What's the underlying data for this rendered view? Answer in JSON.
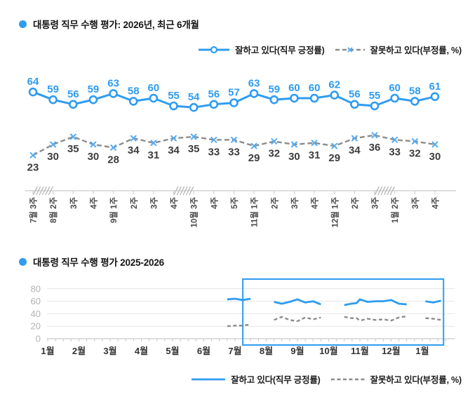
{
  "style": {
    "approve": "#2F9CF0",
    "disapprove": "#8C8C8C",
    "disapprove_marker": "#54ACF2",
    "disapprove_label": "#3D3D3D",
    "axis": "#C9C9C9",
    "grid": "#E4E4E4",
    "hatch": "#B5B5B5",
    "x_tick_label": "#4A4A4A",
    "y_tick_label": "#B3B3B3",
    "month_label": "#333333",
    "title": "#161616",
    "background": "#FFFFFF"
  },
  "chart_data": [
    {
      "type": "line",
      "title": "대통령 직무 수행 평가: 2026년, 최근 6개월",
      "categories": [
        "7월 3주",
        "8월 2주",
        "3주",
        "4주",
        "9월 1주",
        "2주",
        "3주",
        "4주",
        "10월 3주",
        "4주",
        "5주",
        "11월 1주",
        "2주",
        "3주",
        "4주",
        "12월 1주",
        "2주",
        "3주",
        "1월 2주",
        "3주",
        "4주"
      ],
      "series": [
        {
          "name": "잘하고 있다(직무 긍정률)",
          "role": "approval",
          "values": [
            64,
            59,
            56,
            59,
            63,
            58,
            60,
            55,
            54,
            56,
            57,
            63,
            59,
            60,
            60,
            62,
            56,
            55,
            60,
            58,
            61
          ]
        },
        {
          "name": "잘못하고 있다(부정률, %)",
          "role": "disapproval",
          "values": [
            23,
            30,
            35,
            30,
            28,
            34,
            31,
            34,
            35,
            33,
            33,
            29,
            32,
            30,
            31,
            29,
            34,
            36,
            33,
            32,
            30
          ]
        }
      ],
      "axis_breaks_after_index": [
        0,
        7,
        17
      ],
      "value_labels_shown": true,
      "legend_position": "top-right",
      "grid": false
    },
    {
      "type": "line",
      "title": "대통령 직무 수행 평가 2025-2026",
      "x_tick_labels": [
        "1월",
        "2월",
        "3월",
        "4월",
        "5월",
        "6월",
        "7월",
        "8월",
        "9월",
        "10월",
        "11월",
        "12월",
        "1월"
      ],
      "y_ticks": [
        0,
        20,
        40,
        60,
        80
      ],
      "ylim": [
        0,
        90
      ],
      "grid": "horizontal",
      "legend_position": "bottom-right",
      "highlight_box": {
        "x_from_month": 7.25,
        "x_to_month": 13.68
      },
      "series": [
        {
          "name": "잘하고 있다(직무 긍정률)",
          "role": "approval",
          "segments": [
            {
              "x": [
                6.75,
                7.0,
                7.25,
                7.5
              ],
              "values": [
                63,
                64,
                62,
                64
              ]
            },
            {
              "x": [
                8.25,
                8.5,
                8.75,
                9.0,
                9.25,
                9.5,
                9.75
              ],
              "values": [
                59,
                56,
                59,
                63,
                58,
                60,
                55
              ]
            },
            {
              "x": [
                10.5,
                10.72,
                10.89,
                11.0,
                11.25,
                11.5,
                11.75,
                12.0,
                12.25,
                12.5
              ],
              "values": [
                54,
                56,
                57,
                63,
                59,
                60,
                60,
                62,
                56,
                55
              ]
            },
            {
              "x": [
                13.1,
                13.35,
                13.6
              ],
              "values": [
                60,
                58,
                61
              ]
            }
          ]
        },
        {
          "name": "잘못하고 있다(부정률, %)",
          "role": "disapproval",
          "segments": [
            {
              "x": [
                6.75,
                7.0,
                7.25,
                7.5
              ],
              "values": [
                20,
                21,
                21,
                23
              ]
            },
            {
              "x": [
                8.25,
                8.5,
                8.75,
                9.0,
                9.25,
                9.5,
                9.75
              ],
              "values": [
                30,
                35,
                30,
                28,
                34,
                31,
                34
              ]
            },
            {
              "x": [
                10.5,
                10.72,
                10.89,
                11.0,
                11.25,
                11.5,
                11.75,
                12.0,
                12.25,
                12.5
              ],
              "values": [
                35,
                33,
                33,
                29,
                32,
                30,
                31,
                29,
                34,
                36
              ]
            },
            {
              "x": [
                13.1,
                13.35,
                13.6
              ],
              "values": [
                33,
                32,
                30
              ]
            }
          ]
        }
      ]
    }
  ]
}
